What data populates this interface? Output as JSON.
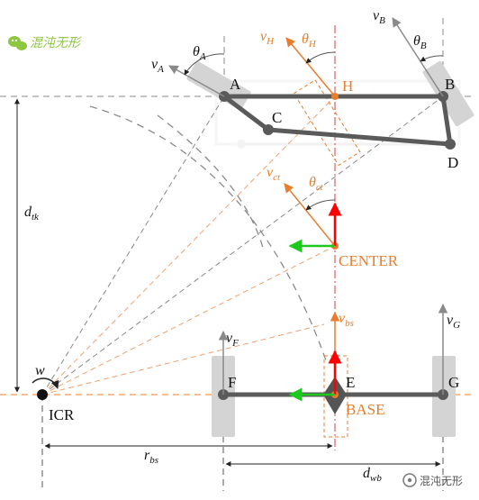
{
  "labels": {
    "A": "A",
    "B": "B",
    "C": "C",
    "D": "D",
    "H": "H",
    "E": "E",
    "F": "F",
    "G": "G",
    "center": "CENTER",
    "base": "BASE",
    "icr": "ICR"
  },
  "symbols": {
    "v_a": {
      "base": "v",
      "sub": "A"
    },
    "v_b": {
      "base": "v",
      "sub": "B"
    },
    "v_h": {
      "base": "v",
      "sub": "H"
    },
    "v_ct": {
      "base": "v",
      "sub": "ct"
    },
    "v_bs": {
      "base": "v",
      "sub": "bs"
    },
    "v_f": {
      "base": "v",
      "sub": "F"
    },
    "v_g": {
      "base": "v",
      "sub": "G"
    },
    "theta_a": {
      "base": "θ",
      "sub": "A"
    },
    "theta_b": {
      "base": "θ",
      "sub": "B"
    },
    "theta_h": {
      "base": "θ",
      "sub": "H"
    },
    "theta_ct": {
      "base": "θ",
      "sub": "ct"
    },
    "d_tk": {
      "base": "d",
      "sub": "tk"
    },
    "r_bs": {
      "base": "r",
      "sub": "bs"
    },
    "d_wb": {
      "base": "d",
      "sub": "wb"
    },
    "omega": {
      "base": "w",
      "sub": ""
    }
  },
  "watermark": {
    "top_left_text": "混沌无形",
    "bottom_right_text": "混沌无形"
  },
  "colors": {
    "link": "#5a5a5a",
    "wheel": "#d4d4d4",
    "orange": "#e87d2e",
    "red": "#ff0000",
    "green": "#1ec81e",
    "arrow_gray": "#8a8a8a",
    "dash_gray": "#909090",
    "dark": "#222222",
    "brand_green": "#8dc63f",
    "brand_gray": "#7a7a7a"
  }
}
